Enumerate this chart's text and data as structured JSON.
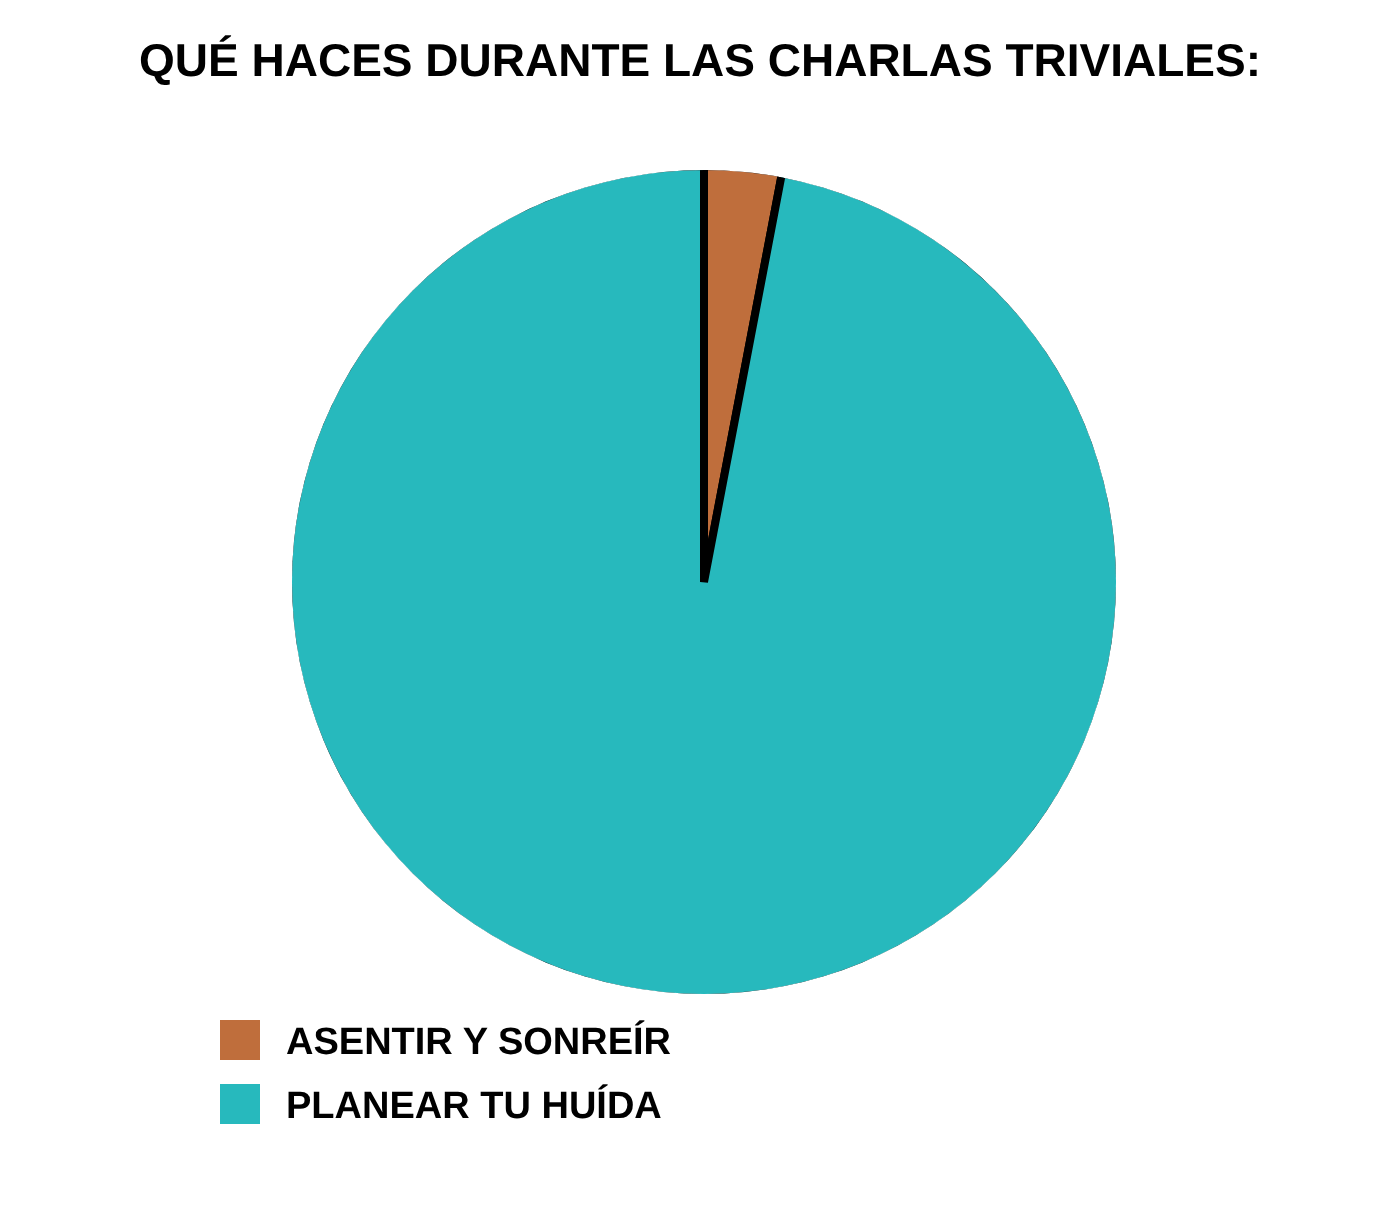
{
  "chart_data": {
    "type": "pie",
    "title": "QUÉ HACES DURANTE LAS CHARLAS TRIVIALES:",
    "categories": [
      "ASENTIR Y SONREÍR",
      "PLANEAR TU HUÍDA"
    ],
    "values": [
      3,
      97
    ],
    "colors": [
      "#bf6e3c",
      "#27b9bd"
    ],
    "legend": "bottom"
  }
}
